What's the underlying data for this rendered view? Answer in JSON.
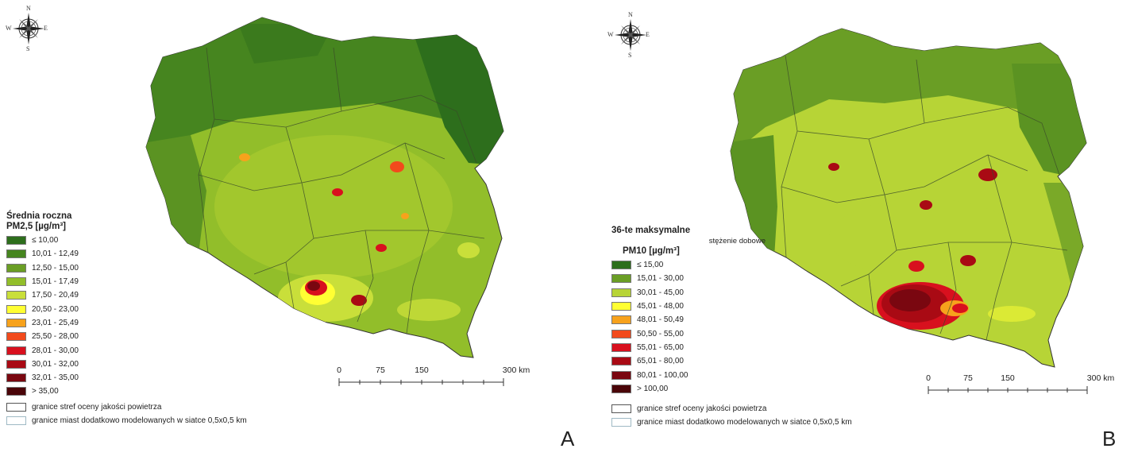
{
  "compass": {
    "north": "N",
    "south": "S",
    "east": "E",
    "west": "W"
  },
  "panel_a": {
    "letter": "A",
    "legend_title_1": "Średnia roczna",
    "legend_title_2": "PM2,5 [µg/m³]",
    "classes": [
      {
        "label": "≤ 10,00",
        "color": "#2d6e1c"
      },
      {
        "label": "10,01 - 12,49",
        "color": "#46851f"
      },
      {
        "label": "12,50 - 15,00",
        "color": "#6a9e25"
      },
      {
        "label": "15,01 - 17,49",
        "color": "#92be2a"
      },
      {
        "label": "17,50 - 20,49",
        "color": "#c9df3a"
      },
      {
        "label": "20,50 - 23,00",
        "color": "#ffff33"
      },
      {
        "label": "23,01 - 25,49",
        "color": "#f7a21c"
      },
      {
        "label": "25,50 - 28,00",
        "color": "#f24a1c"
      },
      {
        "label": "28,01 - 30,00",
        "color": "#d8101e"
      },
      {
        "label": "30,01 - 32,00",
        "color": "#a90a14"
      },
      {
        "label": "32,01 - 35,00",
        "color": "#7a0710"
      },
      {
        "label": "> 35,00",
        "color": "#4a0508"
      }
    ],
    "boundary_zones": "granice stref oceny jakości powietrza",
    "boundary_cities": "granice miast dodatkowo modelowanych w siatce 0,5x0,5 km",
    "scale_labels": [
      "0",
      "75",
      "150",
      "300 km"
    ]
  },
  "panel_b": {
    "letter": "B",
    "legend_title_1": "36-te maksymalne",
    "legend_title_2": "stężenie dobowe",
    "legend_title_3": "PM10 [µg/m³]",
    "classes": [
      {
        "label": "≤ 15,00",
        "color": "#2d6e1c"
      },
      {
        "label": "15,01 - 30,00",
        "color": "#6a9e25"
      },
      {
        "label": "30,01 - 45,00",
        "color": "#b7d436"
      },
      {
        "label": "45,01 - 48,00",
        "color": "#ffff33"
      },
      {
        "label": "48,01 - 50,49",
        "color": "#f7a21c"
      },
      {
        "label": "50,50 - 55,00",
        "color": "#f24a1c"
      },
      {
        "label": "55,01 - 65,00",
        "color": "#d8101e"
      },
      {
        "label": "65,01 - 80,00",
        "color": "#a90a14"
      },
      {
        "label": "80,01 - 100,00",
        "color": "#7a0710"
      },
      {
        "label": "> 100,00",
        "color": "#4a0508"
      }
    ],
    "boundary_zones": "granice stref oceny jakości powietrza",
    "boundary_cities": "granice miast dodatkowo modelowanych w siatce 0,5x0,5 km",
    "scale_labels": [
      "0",
      "75",
      "150",
      "300 km"
    ]
  }
}
